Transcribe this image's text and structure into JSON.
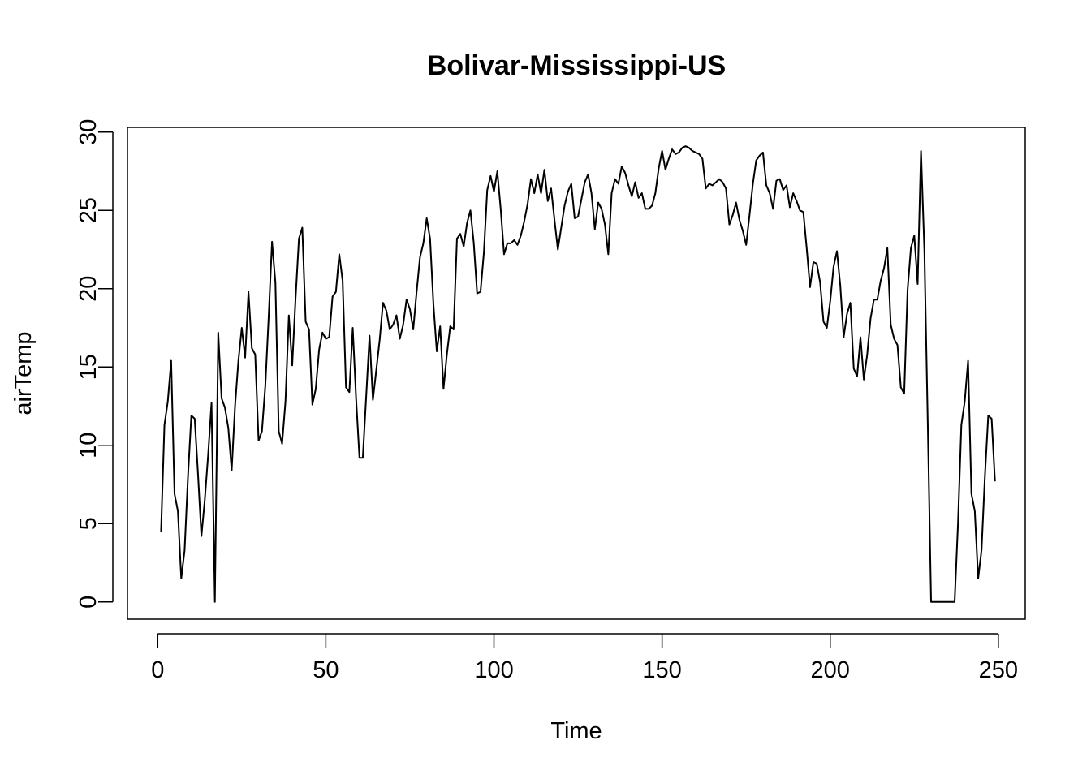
{
  "chart_data": {
    "type": "line",
    "title": "Bolivar-Mississippi-US",
    "xlabel": "Time",
    "ylabel": "airTemp",
    "xlim": [
      -9,
      258
    ],
    "ylim": [
      -1.1,
      30.3
    ],
    "xticks": [
      0,
      50,
      100,
      150,
      200,
      250
    ],
    "yticks": [
      0,
      5,
      10,
      15,
      20,
      25,
      30
    ],
    "grid": false,
    "series": [
      {
        "name": "airTemp",
        "x_start": 1,
        "values": [
          4.5,
          11.3,
          12.8,
          15.4,
          6.9,
          5.8,
          1.5,
          3.3,
          8.0,
          11.9,
          11.7,
          8.1,
          4.2,
          6.5,
          9.4,
          12.7,
          0.0,
          17.2,
          13.0,
          12.4,
          11.1,
          8.4,
          12.5,
          15.4,
          17.5,
          15.6,
          19.8,
          16.2,
          15.8,
          10.3,
          10.9,
          13.8,
          18.2,
          23.0,
          20.4,
          10.9,
          10.1,
          12.8,
          18.3,
          15.1,
          19.4,
          23.2,
          23.9,
          17.9,
          17.4,
          12.6,
          13.6,
          16.1,
          17.2,
          16.8,
          16.9,
          19.5,
          19.8,
          22.2,
          20.5,
          13.7,
          13.4,
          17.5,
          13.0,
          9.2,
          9.2,
          13.1,
          17.0,
          12.9,
          14.8,
          16.7,
          19.1,
          18.6,
          17.4,
          17.7,
          18.3,
          16.8,
          17.7,
          19.3,
          18.7,
          17.4,
          19.8,
          22.0,
          22.9,
          24.5,
          23.2,
          19.0,
          16.0,
          17.6,
          13.6,
          15.8,
          17.6,
          17.4,
          23.2,
          23.5,
          22.7,
          24.2,
          25.0,
          22.9,
          19.7,
          19.8,
          22.3,
          26.3,
          27.2,
          26.2,
          27.5,
          25.1,
          22.2,
          22.9,
          22.9,
          23.1,
          22.8,
          23.4,
          24.3,
          25.4,
          27.0,
          26.1,
          27.3,
          26.1,
          27.6,
          25.6,
          26.4,
          24.4,
          22.5,
          23.9,
          25.3,
          26.2,
          26.7,
          24.5,
          24.6,
          25.7,
          26.8,
          27.3,
          26.1,
          23.8,
          25.5,
          25.1,
          24.1,
          22.2,
          26.1,
          27.0,
          26.7,
          27.8,
          27.4,
          26.6,
          25.9,
          26.8,
          25.8,
          26.1,
          25.1,
          25.1,
          25.3,
          26.1,
          27.7,
          28.8,
          27.6,
          28.3,
          28.9,
          28.6,
          28.7,
          29.0,
          29.1,
          29.0,
          28.8,
          28.7,
          28.6,
          28.3,
          26.4,
          26.7,
          26.6,
          26.8,
          27.0,
          26.8,
          26.4,
          24.1,
          24.7,
          25.5,
          24.4,
          23.7,
          22.8,
          24.7,
          26.7,
          28.2,
          28.5,
          28.7,
          26.6,
          26.1,
          25.1,
          26.9,
          27.0,
          26.3,
          26.6,
          25.2,
          26.1,
          25.6,
          25.0,
          24.9,
          22.6,
          20.1,
          21.7,
          21.6,
          20.4,
          17.9,
          17.5,
          19.2,
          21.4,
          22.4,
          20.2,
          16.9,
          18.4,
          19.1,
          14.9,
          14.4,
          16.9,
          14.2,
          15.8,
          18.1,
          19.3,
          19.3,
          20.5,
          21.3,
          22.6,
          17.7,
          16.8,
          16.4,
          13.7,
          13.3,
          19.9,
          22.6,
          23.4,
          20.3,
          28.8,
          22.5,
          11.5,
          0.0,
          0.0,
          0.0,
          0.0,
          0.0,
          0.0,
          0.0,
          0.0,
          5.0,
          11.3,
          12.8,
          15.4,
          6.9,
          5.8,
          1.5,
          3.3,
          8.0,
          11.9,
          11.7,
          7.7
        ]
      }
    ]
  }
}
